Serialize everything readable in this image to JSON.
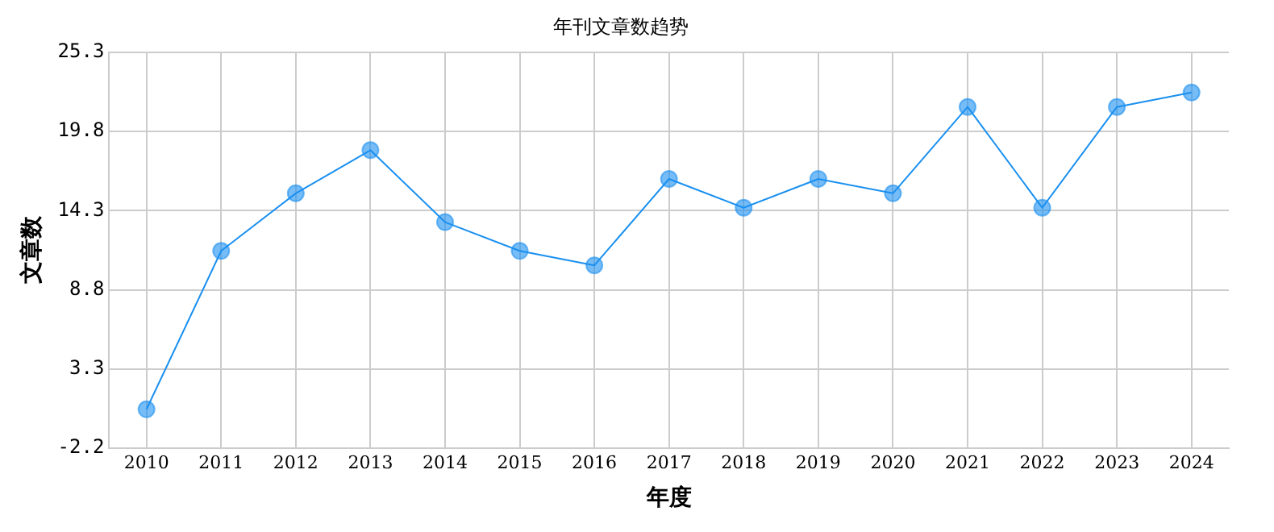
{
  "chart_data": {
    "type": "line",
    "title": "年刊文章数趋势",
    "xlabel": "年度",
    "ylabel": "文章数",
    "categories": [
      "2010",
      "2011",
      "2012",
      "2013",
      "2014",
      "2015",
      "2016",
      "2017",
      "2018",
      "2019",
      "2020",
      "2021",
      "2022",
      "2023",
      "2024"
    ],
    "series": [
      {
        "color": "#1a90f0",
        "values": [
          0.5,
          11.5,
          15.5,
          18.5,
          13.5,
          11.5,
          10.5,
          16.5,
          14.5,
          16.5,
          15.5,
          21.5,
          14.5,
          21.5,
          22.5
        ]
      }
    ],
    "ylim": [
      -2.2,
      25.3
    ],
    "yticks": [
      -2.2,
      3.3,
      8.8,
      14.3,
      19.8,
      25.3
    ],
    "grid": true,
    "legend": false,
    "marker": "circle",
    "line_style": "solid"
  }
}
